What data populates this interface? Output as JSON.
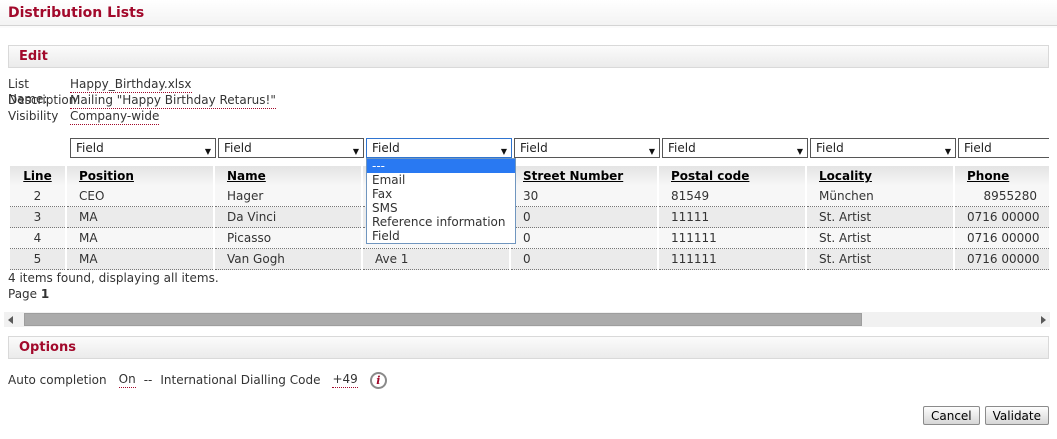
{
  "title": "Distribution Lists",
  "edit": {
    "header": "Edit",
    "fields": [
      {
        "label": "List Name:",
        "value": "Happy_Birthday.xlsx"
      },
      {
        "label": "Description:",
        "value": "Mailing \"Happy Birthday Retarus!\""
      },
      {
        "label": "Visibility",
        "value": "Company-wide"
      }
    ]
  },
  "selectors": {
    "label": "Field",
    "count": 7,
    "open_index": 2,
    "options": [
      "---",
      "Email",
      "Fax",
      "SMS",
      "Reference information",
      "Field"
    ],
    "highlighted": "---"
  },
  "table": {
    "columns": [
      "Line",
      "Position",
      "Name",
      "",
      "Street Number",
      "Postal code",
      "Locality",
      "Phone"
    ],
    "rows": [
      [
        "2",
        "CEO",
        "Hager",
        "",
        "30",
        "81549",
        "München",
        "8955280"
      ],
      [
        "3",
        "MA",
        "Da Vinci",
        "",
        "0",
        "11111",
        "St. Artist",
        "0716 00000"
      ],
      [
        "4",
        "MA",
        "Picasso",
        "",
        "0",
        "111111",
        "St. Artist",
        "0716 00000"
      ],
      [
        "5",
        "MA",
        "Van Gogh",
        "Ave 1",
        "0",
        "111111",
        "St. Artist",
        "0716 00000"
      ]
    ],
    "summary": "4 items found, displaying all items.",
    "page_label": "Page",
    "page_number": "1"
  },
  "options_section": {
    "header": "Options",
    "auto_completion_label": "Auto completion",
    "auto_completion_value": "On",
    "separator": "--",
    "dialling_label": "International Dialling Code",
    "dialling_value": "+49",
    "info_glyph": "i"
  },
  "actions": {
    "cancel": "Cancel",
    "validate": "Validate"
  },
  "icons": {
    "select_arrow": "▼"
  },
  "colors": {
    "accent": "#a2092b",
    "highlight": "#2979f2",
    "scrollbar_thumb": "#ababab"
  }
}
